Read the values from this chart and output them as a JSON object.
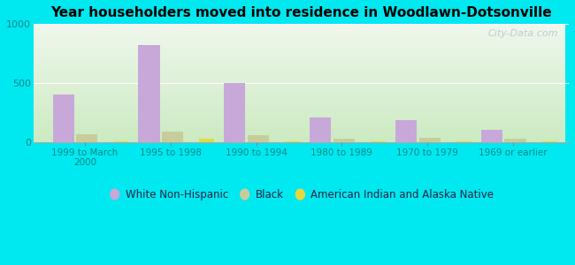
{
  "title": "Year householders moved into residence in Woodlawn-Dotsonville",
  "categories": [
    "1999 to March\n2000",
    "1995 to 1998",
    "1990 to 1994",
    "1980 to 1989",
    "1970 to 1979",
    "1969 or earlier"
  ],
  "white_non_hispanic": [
    400,
    820,
    500,
    210,
    185,
    100
  ],
  "black": [
    65,
    90,
    55,
    30,
    35,
    25
  ],
  "american_indian": [
    5,
    25,
    8,
    5,
    5,
    5
  ],
  "white_color": "#c8a8d8",
  "black_color": "#c8cc9a",
  "indian_color": "#e8d840",
  "ylim": [
    0,
    1000
  ],
  "yticks": [
    0,
    500,
    1000
  ],
  "bg_outer": "#00e8f0",
  "bg_plot_topleft": "#e8f2e0",
  "bg_plot_topright": "#f8fcf8",
  "bg_plot_bottom": "#c8e8c0",
  "watermark": "City-Data.com",
  "bar_width": 0.25,
  "tick_color": "#008888",
  "title_fontsize": 11,
  "legend_fontsize": 8.5
}
